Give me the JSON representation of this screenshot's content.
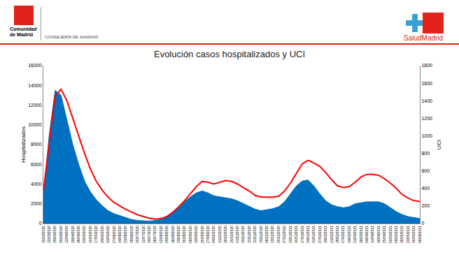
{
  "header": {
    "left_org": "Comunidad de Madrid",
    "department": "CONSEJERÍA DE SANIDAD",
    "right_brand": "SaludMadrid"
  },
  "chart_data": {
    "type": "area",
    "title": "Evolución casos hospitalizados y UCI",
    "y_label": "Hospitalizados",
    "y2_label": "UCI",
    "categories": [
      "15/03/2020",
      "22/03/2020",
      "29/03/2020",
      "05/04/2020",
      "12/04/2020",
      "19/04/2020",
      "26/04/2020",
      "03/05/2020",
      "10/05/2020",
      "17/05/2020",
      "24/05/2020",
      "31/05/2020",
      "07/06/2020",
      "14/06/2020",
      "21/06/2020",
      "28/06/2020",
      "05/07/2020",
      "12/07/2020",
      "19/07/2020",
      "26/07/2020",
      "02/08/2020",
      "09/08/2020",
      "16/08/2020",
      "23/08/2020",
      "30/08/2020",
      "06/09/2020",
      "13/09/2020",
      "20/09/2020",
      "27/09/2020",
      "04/10/2020",
      "11/10/2020",
      "18/10/2020",
      "25/10/2020",
      "01/11/2020",
      "08/11/2020",
      "15/11/2020",
      "22/11/2020",
      "29/11/2020",
      "06/12/2020",
      "13/12/2020",
      "20/12/2020",
      "27/12/2020",
      "03/01/2021",
      "10/01/2021",
      "17/01/2021",
      "24/01/2021",
      "31/01/2021",
      "07/02/2021",
      "14/02/2021",
      "21/02/2021",
      "28/02/2021",
      "07/03/2021",
      "14/03/2021",
      "21/03/2021",
      "28/03/2021",
      "04/04/2021",
      "11/04/2021",
      "18/04/2021",
      "25/04/2021",
      "02/05/2021",
      "09/05/2021",
      "16/05/2021",
      "23/05/2021",
      "30/05/2021",
      "06/06/2021"
    ],
    "series": [
      {
        "name": "Hospitalizados",
        "type": "area",
        "color": "#0070c0",
        "values": [
          2800,
          9000,
          13500,
          13000,
          10500,
          8000,
          6000,
          4300,
          3200,
          2400,
          1800,
          1300,
          1000,
          800,
          600,
          400,
          300,
          250,
          250,
          300,
          400,
          700,
          1100,
          1600,
          2200,
          2700,
          3100,
          3300,
          3100,
          2800,
          2700,
          2600,
          2500,
          2300,
          2000,
          1700,
          1450,
          1300,
          1400,
          1500,
          1700,
          2200,
          3000,
          3800,
          4300,
          4400,
          3800,
          3000,
          2300,
          1900,
          1700,
          1600,
          1700,
          2000,
          2100,
          2200,
          2200,
          2200,
          2000,
          1600,
          1200,
          900,
          700,
          600,
          500
        ]
      },
      {
        "name": "UCI",
        "type": "line",
        "color": "#ff0000",
        "axis": "y2",
        "values": [
          370,
          900,
          1450,
          1530,
          1400,
          1200,
          1000,
          800,
          620,
          480,
          380,
          300,
          240,
          200,
          160,
          130,
          100,
          80,
          60,
          50,
          55,
          80,
          130,
          190,
          260,
          340,
          420,
          480,
          470,
          450,
          470,
          490,
          480,
          450,
          410,
          370,
          320,
          300,
          300,
          300,
          310,
          370,
          460,
          570,
          680,
          720,
          690,
          650,
          580,
          500,
          430,
          410,
          420,
          470,
          530,
          560,
          560,
          550,
          510,
          460,
          400,
          330,
          290,
          260,
          250
        ]
      }
    ],
    "ylim": [
      0,
      16000
    ],
    "yticks": [
      0,
      2000,
      4000,
      6000,
      8000,
      10000,
      12000,
      14000,
      16000
    ],
    "y2lim": [
      0,
      1800
    ],
    "y2ticks": [
      0,
      200,
      400,
      600,
      800,
      1000,
      1200,
      1400,
      1600,
      1800
    ],
    "grid": false
  }
}
